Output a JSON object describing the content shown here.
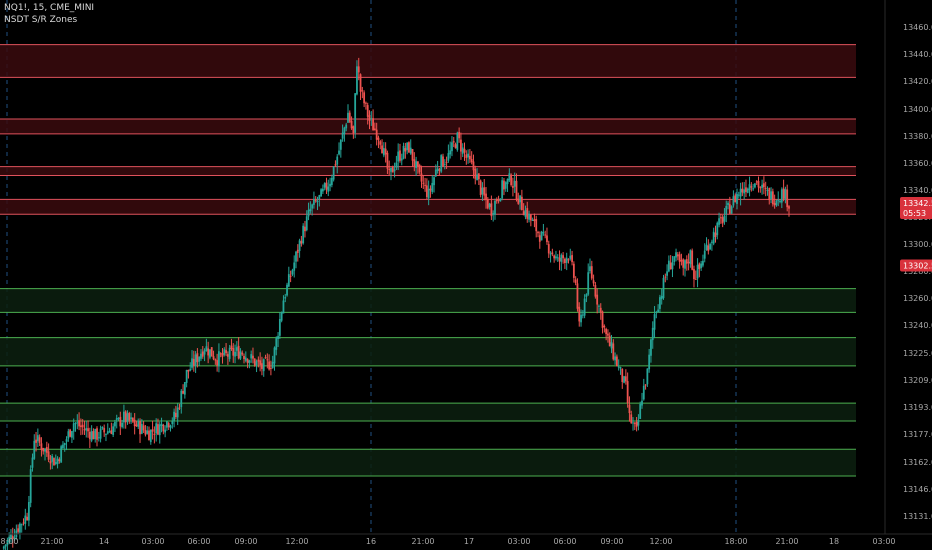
{
  "legend": {
    "symbol_line": "NQ1!, 15, CME_MINI",
    "indicator_line": "NSDT S/R Zones"
  },
  "colors": {
    "background": "#000000",
    "up": "#26a69a",
    "down": "#ef5350",
    "resistance_fill": "#3a0b0e",
    "resistance_line": "#e0525c",
    "support_fill": "#0c200f",
    "support_line": "#4caf50",
    "grid_dash": "#1f4f82",
    "axis_text": "#a8a8a8",
    "price_tag": "#d9323c"
  },
  "chart_data": {
    "type": "candlestick",
    "title": "",
    "xlabel": "",
    "ylabel": "",
    "ylim": [
      13122,
      13481
    ],
    "y_ticks": [
      "13460.00",
      "13440.00",
      "13420.00",
      "13400.00",
      "13380.00",
      "13360.00",
      "13340.00",
      "13320.00",
      "13300.00",
      "13280.00",
      "13260.00",
      "13240.00",
      "13225.00",
      "13209.00",
      "13193.00",
      "13177.00",
      "13162.00",
      "13146.00",
      "13131.00"
    ],
    "x_ticks": [
      "18:00",
      "21:00",
      "14",
      "03:00",
      "06:00",
      "09:00",
      "12:00",
      "16",
      "21:00",
      "17",
      "03:00",
      "06:00",
      "09:00",
      "12:00",
      "18:00",
      "21:00",
      "18",
      "03:00"
    ],
    "session_lines_at_ticks": [
      0,
      7,
      14
    ],
    "last_price": "13342.50",
    "countdown": "05:53",
    "secondary_price": "13302.50",
    "resistance_zones": [
      [
        13429,
        13451
      ],
      [
        13391,
        13401
      ],
      [
        13363,
        13369
      ],
      [
        13337,
        13347
      ]
    ],
    "support_zones": [
      [
        13271,
        13287
      ],
      [
        13235,
        13254
      ],
      [
        13198,
        13210
      ],
      [
        13161,
        13179
      ]
    ],
    "path": [
      [
        0,
        13112
      ],
      [
        14,
        13135
      ],
      [
        18,
        13187
      ],
      [
        30,
        13170
      ],
      [
        40,
        13197
      ],
      [
        52,
        13188
      ],
      [
        60,
        13192
      ],
      [
        68,
        13200
      ],
      [
        82,
        13190
      ],
      [
        97,
        13201
      ],
      [
        103,
        13230
      ],
      [
        113,
        13248
      ],
      [
        120,
        13240
      ],
      [
        133,
        13245
      ],
      [
        145,
        13234
      ],
      [
        151,
        13238
      ],
      [
        157,
        13280
      ],
      [
        162,
        13300
      ],
      [
        167,
        13322
      ],
      [
        172,
        13340
      ],
      [
        178,
        13349
      ],
      [
        183,
        13360
      ],
      [
        188,
        13380
      ],
      [
        193,
        13405
      ],
      [
        196,
        13390
      ],
      [
        198,
        13440
      ],
      [
        200,
        13420
      ],
      [
        205,
        13400
      ],
      [
        211,
        13388
      ],
      [
        216,
        13362
      ],
      [
        221,
        13376
      ],
      [
        227,
        13382
      ],
      [
        233,
        13361
      ],
      [
        238,
        13350
      ],
      [
        243,
        13370
      ],
      [
        249,
        13376
      ],
      [
        254,
        13388
      ],
      [
        259,
        13375
      ],
      [
        264,
        13365
      ],
      [
        268,
        13350
      ],
      [
        273,
        13340
      ],
      [
        279,
        13355
      ],
      [
        284,
        13361
      ],
      [
        289,
        13345
      ],
      [
        294,
        13335
      ],
      [
        299,
        13325
      ],
      [
        305,
        13315
      ],
      [
        310,
        13305
      ],
      [
        316,
        13310
      ],
      [
        320,
        13290
      ],
      [
        322,
        13260
      ],
      [
        325,
        13280
      ],
      [
        328,
        13300
      ],
      [
        332,
        13280
      ],
      [
        337,
        13255
      ],
      [
        342,
        13240
      ],
      [
        345,
        13230
      ],
      [
        348,
        13220
      ],
      [
        350,
        13200
      ],
      [
        352,
        13195
      ],
      [
        354,
        13190
      ],
      [
        357,
        13215
      ],
      [
        360,
        13230
      ],
      [
        364,
        13270
      ],
      [
        368,
        13285
      ],
      [
        371,
        13300
      ],
      [
        375,
        13308
      ],
      [
        380,
        13300
      ],
      [
        384,
        13310
      ],
      [
        386,
        13296
      ],
      [
        389,
        13300
      ],
      [
        393,
        13315
      ],
      [
        399,
        13328
      ],
      [
        404,
        13338
      ],
      [
        410,
        13350
      ],
      [
        415,
        13356
      ],
      [
        420,
        13360
      ],
      [
        425,
        13352
      ],
      [
        431,
        13348
      ],
      [
        436,
        13352
      ],
      [
        439,
        13344
      ]
    ],
    "x_range": [
      0,
      492
    ]
  }
}
